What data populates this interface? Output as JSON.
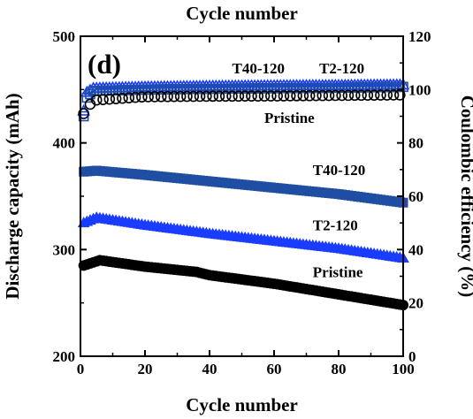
{
  "chart_data": {
    "type": "scatter",
    "panel_label": "(d)",
    "x_top_label": "Cycle number",
    "xlabel": "Cycle number",
    "ylabel_left": "Discharge capacity (mAh)",
    "ylabel_right": "Coulombic efficiency (%)",
    "xlim": [
      0,
      100
    ],
    "ylim_left": [
      200,
      500
    ],
    "ylim_right": [
      0,
      120
    ],
    "x_ticks": [
      0,
      20,
      40,
      60,
      80,
      100
    ],
    "y_left_ticks": [
      200,
      300,
      400,
      500
    ],
    "y_right_ticks": [
      0,
      20,
      40,
      60,
      80,
      100,
      120
    ],
    "grid": false,
    "capacity_series": [
      {
        "name": "T40-120",
        "axis": "left",
        "color": "#1f4ea3",
        "marker": "square-filled",
        "anchors": [
          [
            1,
            373
          ],
          [
            5,
            374
          ],
          [
            20,
            370
          ],
          [
            40,
            364
          ],
          [
            60,
            358
          ],
          [
            80,
            352
          ],
          [
            100,
            344
          ]
        ]
      },
      {
        "name": "T2-120",
        "axis": "left",
        "color": "#1a3cff",
        "marker": "triangle-filled",
        "anchors": [
          [
            1,
            325
          ],
          [
            5,
            330
          ],
          [
            20,
            323
          ],
          [
            40,
            315
          ],
          [
            60,
            308
          ],
          [
            80,
            301
          ],
          [
            100,
            292
          ]
        ]
      },
      {
        "name": "Pristine",
        "axis": "left",
        "color": "#000000",
        "marker": "circle-filled",
        "anchors": [
          [
            1,
            285
          ],
          [
            6,
            290
          ],
          [
            20,
            284
          ],
          [
            36,
            279
          ],
          [
            40,
            276
          ],
          [
            60,
            268
          ],
          [
            80,
            258
          ],
          [
            100,
            248
          ]
        ]
      }
    ],
    "efficiency_series": [
      {
        "name": "T2-120",
        "axis": "right",
        "color": "#1a3cff",
        "marker": "triangle-open",
        "anchors": [
          [
            1,
            92
          ],
          [
            2,
            99
          ],
          [
            4,
            100.5
          ],
          [
            20,
            101
          ],
          [
            40,
            101.3
          ],
          [
            60,
            101.5
          ],
          [
            80,
            101.6
          ],
          [
            100,
            101.8
          ]
        ]
      },
      {
        "name": "T40-120",
        "axis": "right",
        "color": "#1f4ea3",
        "marker": "square-open",
        "anchors": [
          [
            1,
            90
          ],
          [
            2,
            97
          ],
          [
            4,
            99.5
          ],
          [
            20,
            100
          ],
          [
            40,
            100.3
          ],
          [
            60,
            100.5
          ],
          [
            80,
            100.7
          ],
          [
            100,
            101
          ]
        ]
      },
      {
        "name": "Pristine",
        "axis": "right",
        "color": "#000000",
        "marker": "circle-open",
        "anchors": [
          [
            1,
            91
          ],
          [
            2,
            93
          ],
          [
            4,
            96
          ],
          [
            20,
            97.3
          ],
          [
            40,
            97.5
          ],
          [
            60,
            97.6
          ],
          [
            80,
            97.8
          ],
          [
            100,
            98
          ]
        ]
      }
    ],
    "annotations": [
      {
        "text": "T40-120",
        "x": 72,
        "y": 370,
        "axis": "left",
        "for": "T40-120 capacity"
      },
      {
        "text": "T2-120",
        "x": 72,
        "y": 318,
        "axis": "left",
        "for": "T2-120 capacity"
      },
      {
        "text": "Pristine",
        "x": 72,
        "y": 274,
        "axis": "left",
        "for": "Pristine capacity"
      },
      {
        "text": "T40-120",
        "x": 47,
        "y": 106,
        "axis": "right",
        "for": "T40-120 efficiency"
      },
      {
        "text": "T2-120",
        "x": 74,
        "y": 106,
        "axis": "right",
        "for": "T2-120 efficiency"
      },
      {
        "text": "Pristine",
        "x": 57,
        "y": 87.5,
        "axis": "right",
        "for": "Pristine efficiency"
      }
    ]
  }
}
